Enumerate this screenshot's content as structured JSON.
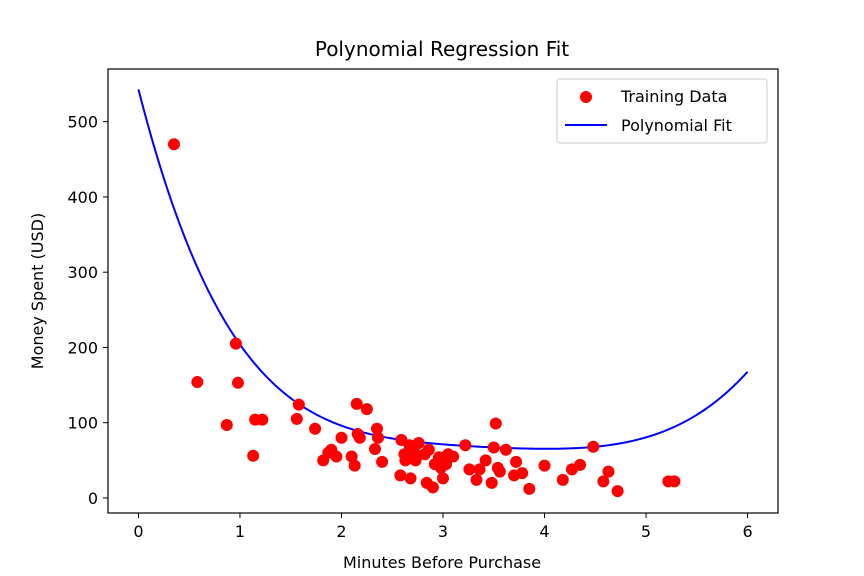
{
  "chart_data": {
    "type": "scatter",
    "title": "Polynomial Regression Fit",
    "xlabel": "Minutes Before Purchase",
    "ylabel": "Money Spent (USD)",
    "xlim": [
      -0.3,
      6.3
    ],
    "ylim": [
      -20,
      570
    ],
    "xticks": [
      0,
      1,
      2,
      3,
      4,
      5,
      6
    ],
    "yticks": [
      0,
      100,
      200,
      300,
      400,
      500
    ],
    "xtick_labels": [
      "0",
      "1",
      "2",
      "3",
      "4",
      "5",
      "6"
    ],
    "ytick_labels": [
      "0",
      "100",
      "200",
      "300",
      "400",
      "500"
    ],
    "grid": false,
    "legend_placement": "top-right",
    "series": [
      {
        "name": "Training Data",
        "kind": "scatter",
        "color": "#ff0000",
        "points": [
          [
            0.35,
            470
          ],
          [
            0.58,
            154
          ],
          [
            0.87,
            97
          ],
          [
            0.96,
            205
          ],
          [
            0.98,
            153
          ],
          [
            1.13,
            56
          ],
          [
            1.15,
            104
          ],
          [
            1.22,
            104
          ],
          [
            1.56,
            105
          ],
          [
            1.58,
            124
          ],
          [
            1.74,
            92
          ],
          [
            1.82,
            50
          ],
          [
            1.87,
            60
          ],
          [
            1.9,
            64
          ],
          [
            1.95,
            55
          ],
          [
            2.0,
            80
          ],
          [
            2.1,
            55
          ],
          [
            2.13,
            43
          ],
          [
            2.15,
            125
          ],
          [
            2.16,
            85
          ],
          [
            2.18,
            80
          ],
          [
            2.25,
            118
          ],
          [
            2.33,
            65
          ],
          [
            2.35,
            92
          ],
          [
            2.36,
            80
          ],
          [
            2.4,
            48
          ],
          [
            2.58,
            30
          ],
          [
            2.59,
            77
          ],
          [
            2.62,
            58
          ],
          [
            2.63,
            50
          ],
          [
            2.67,
            70
          ],
          [
            2.68,
            26
          ],
          [
            2.72,
            60
          ],
          [
            2.73,
            50
          ],
          [
            2.76,
            73
          ],
          [
            2.82,
            58
          ],
          [
            2.84,
            20
          ],
          [
            2.86,
            64
          ],
          [
            2.9,
            14
          ],
          [
            2.92,
            45
          ],
          [
            2.96,
            54
          ],
          [
            2.98,
            40
          ],
          [
            3.0,
            26
          ],
          [
            3.03,
            45
          ],
          [
            3.05,
            58
          ],
          [
            3.06,
            55
          ],
          [
            3.1,
            55
          ],
          [
            3.22,
            70
          ],
          [
            3.26,
            38
          ],
          [
            3.33,
            24
          ],
          [
            3.36,
            38
          ],
          [
            3.42,
            50
          ],
          [
            3.48,
            20
          ],
          [
            3.5,
            67
          ],
          [
            3.52,
            99
          ],
          [
            3.54,
            40
          ],
          [
            3.56,
            35
          ],
          [
            3.62,
            64
          ],
          [
            3.7,
            30
          ],
          [
            3.72,
            48
          ],
          [
            3.78,
            33
          ],
          [
            3.85,
            12
          ],
          [
            4.0,
            43
          ],
          [
            4.18,
            24
          ],
          [
            4.27,
            38
          ],
          [
            4.35,
            44
          ],
          [
            4.48,
            68
          ],
          [
            4.58,
            22
          ],
          [
            4.63,
            35
          ],
          [
            4.72,
            9
          ],
          [
            5.22,
            22
          ],
          [
            5.28,
            22
          ]
        ]
      },
      {
        "name": "Polynomial Fit",
        "kind": "line",
        "color": "#0000ff",
        "coefficients_ascending": [
          543,
          -528.5,
          235.4,
          -50.78,
          4.96,
          -0.1464
        ],
        "x_range": [
          0,
          6
        ]
      }
    ]
  }
}
